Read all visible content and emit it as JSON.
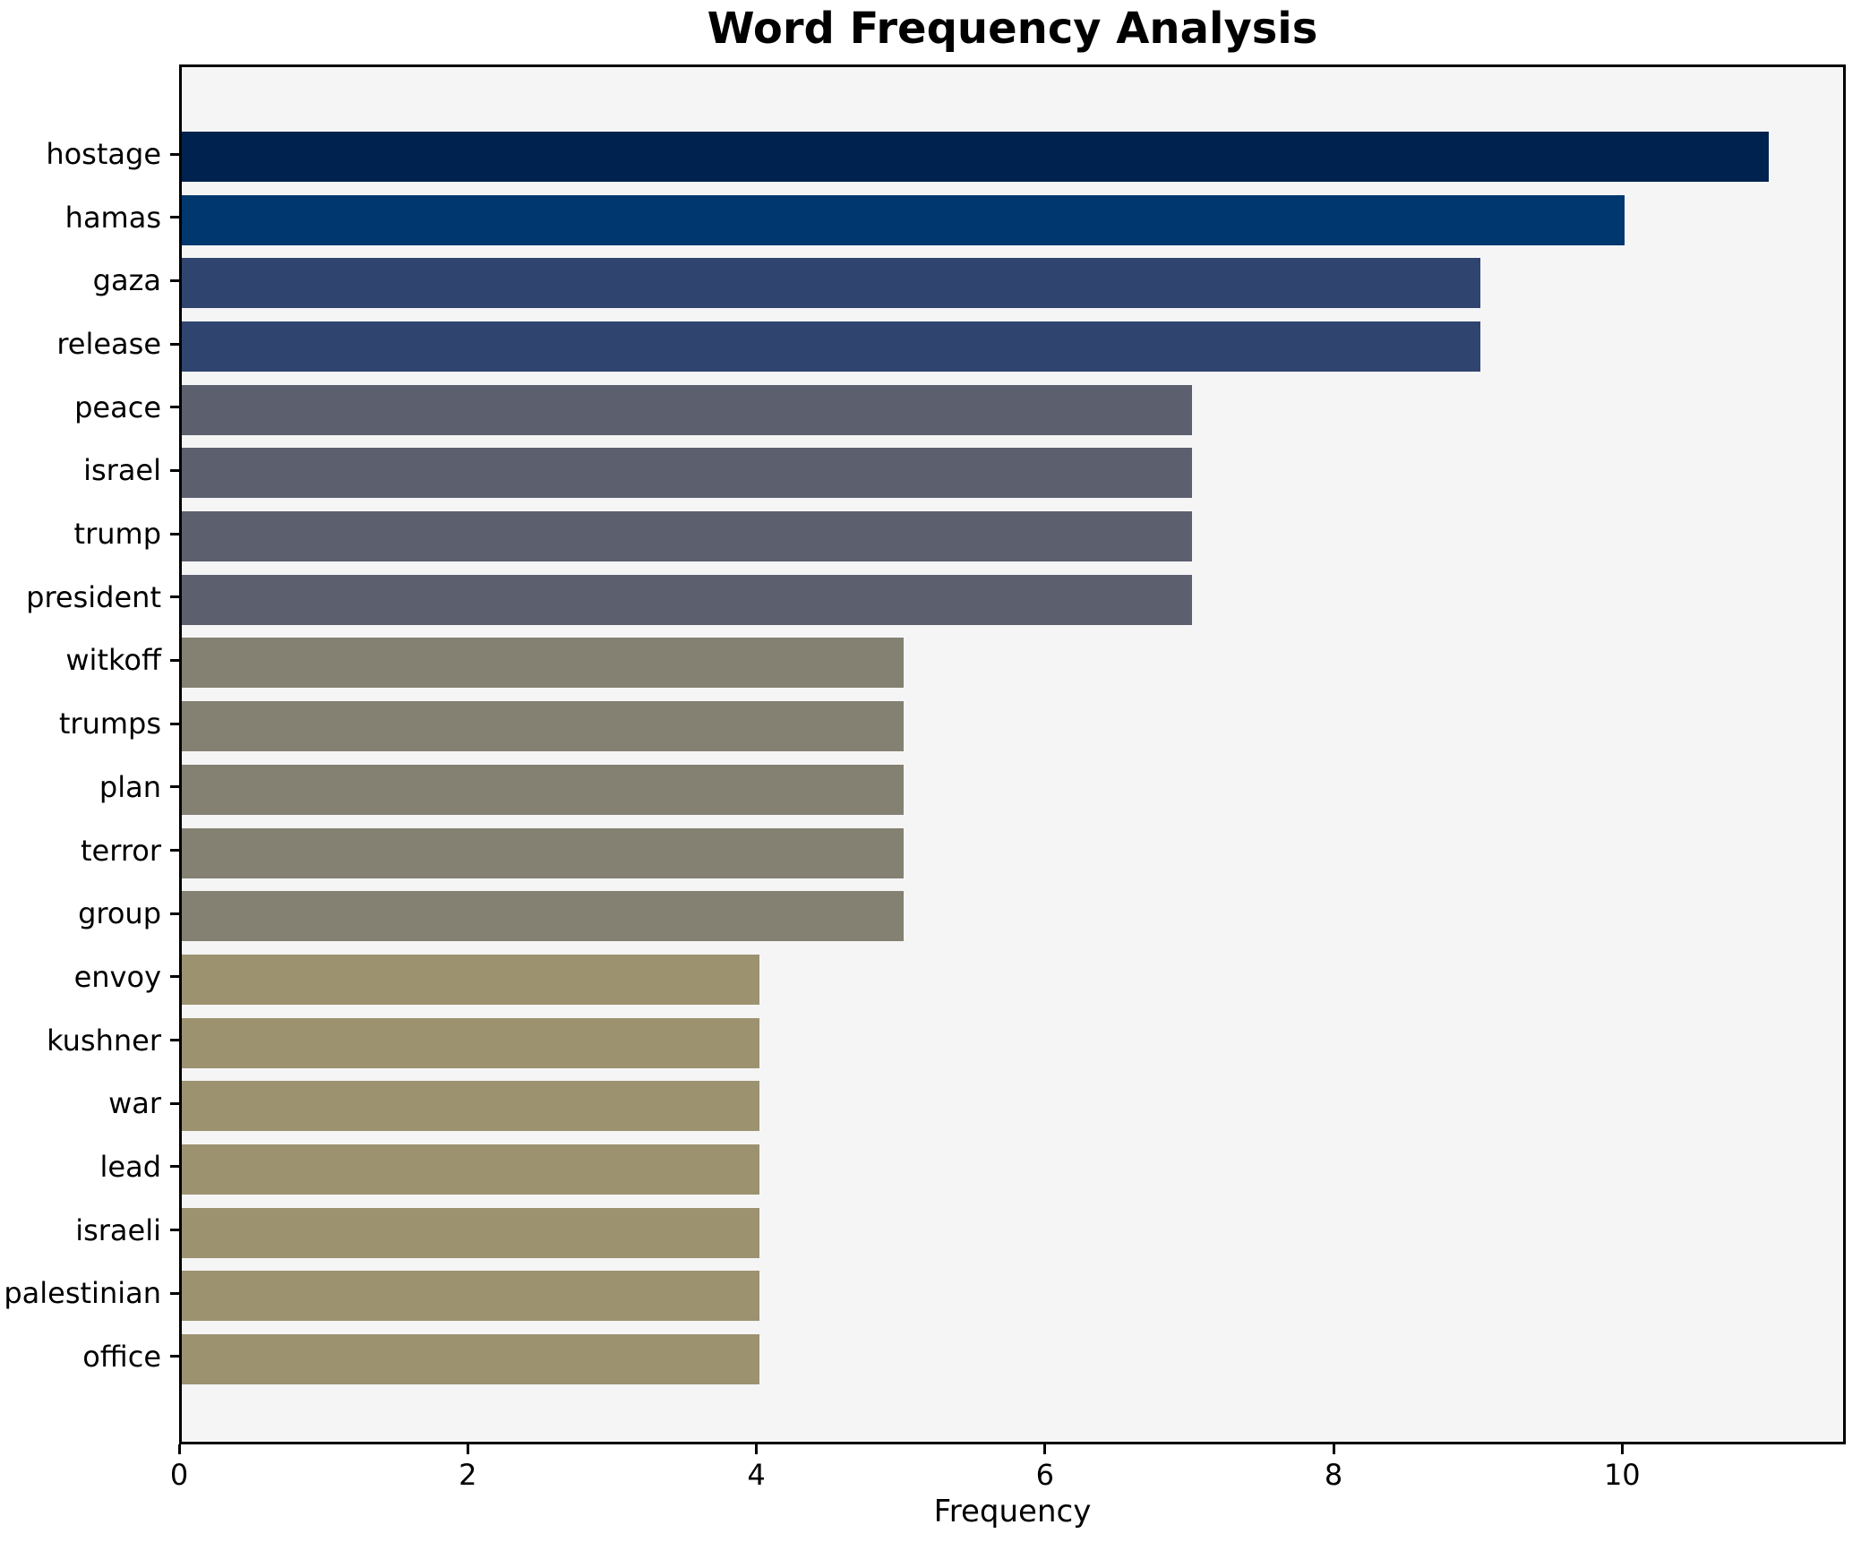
{
  "chart_data": {
    "type": "bar",
    "orientation": "horizontal",
    "title": "Word Frequency Analysis",
    "xlabel": "Frequency",
    "ylabel": "",
    "categories": [
      "hostage",
      "hamas",
      "gaza",
      "release",
      "peace",
      "israel",
      "trump",
      "president",
      "witkoff",
      "trumps",
      "plan",
      "terror",
      "group",
      "envoy",
      "kushner",
      "war",
      "lead",
      "israeli",
      "palestinian",
      "office"
    ],
    "values": [
      11,
      10,
      9,
      9,
      7,
      7,
      7,
      7,
      5,
      5,
      5,
      5,
      5,
      4,
      4,
      4,
      4,
      4,
      4,
      4
    ],
    "bar_colors": [
      "#00224e",
      "#00376f",
      "#304470",
      "#304470",
      "#5c5f6e",
      "#5c5f6e",
      "#5c5f6e",
      "#5c5f6e",
      "#848172",
      "#848172",
      "#848172",
      "#848172",
      "#848172",
      "#9c9270",
      "#9c9270",
      "#9c9270",
      "#9c9270",
      "#9c9270",
      "#9c9270",
      "#9c9270"
    ],
    "xticks": [
      0,
      2,
      4,
      6,
      8,
      10
    ],
    "xlim": [
      0,
      11.55
    ],
    "grid": false,
    "legend_position": "none",
    "plot_background": "#f5f5f6",
    "figure_background": "#ffffff",
    "spine_color": "#000000"
  }
}
